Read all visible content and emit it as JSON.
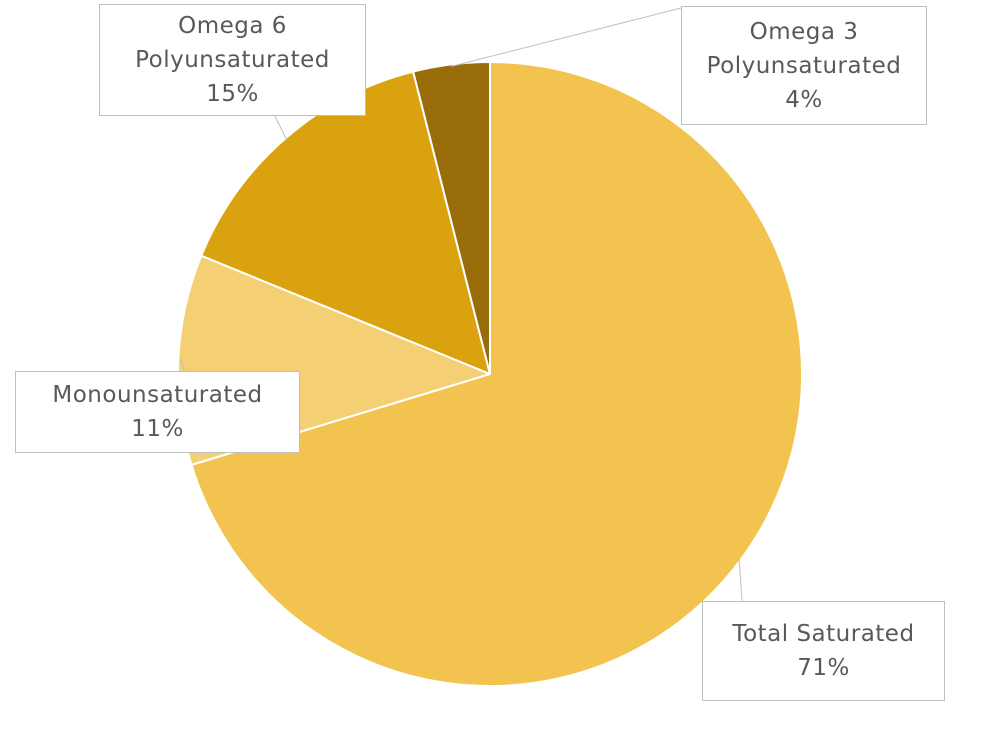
{
  "chart_data": {
    "type": "pie",
    "title": "",
    "legend": "none",
    "start_angle_deg": 0,
    "direction": "clockwise",
    "series": [
      {
        "values": [
          71,
          11,
          15,
          4
        ],
        "categories": [
          "Total Saturated",
          "Monounsaturated",
          "Omega 6 Polyunsaturated",
          "Omega 3 Polyunsaturated"
        ]
      }
    ],
    "slices": [
      {
        "category_lines": [
          "Total Saturated"
        ],
        "value": 71,
        "value_label": "71%",
        "color": "#f2c44f"
      },
      {
        "category_lines": [
          "Monounsaturated"
        ],
        "value": 11,
        "value_label": "11%",
        "color": "#f5cf73"
      },
      {
        "category_lines": [
          "Omega 6",
          "Polyunsaturated"
        ],
        "value": 15,
        "value_label": "15%",
        "color": "#daa20e"
      },
      {
        "category_lines": [
          "Omega 3",
          "Polyunsaturated"
        ],
        "value": 4,
        "value_label": "4%",
        "color": "#986c09"
      }
    ],
    "colors": {
      "slice_border": "#ffffff",
      "label_text": "#595959",
      "label_border": "#bfbfbf",
      "leader_line": "#bfbfbf"
    }
  }
}
